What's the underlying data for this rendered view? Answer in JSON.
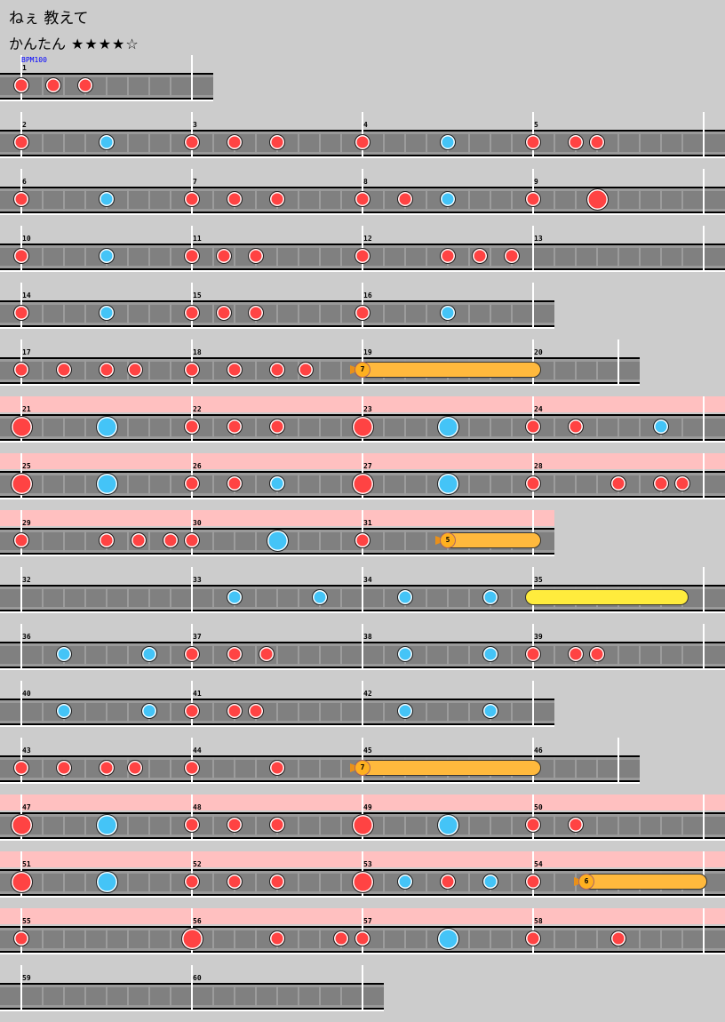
{
  "song_title": "ねぇ 教えて",
  "course": {
    "name": "かんたん",
    "stars": "★★★★☆",
    "level": 4,
    "max_level": 5
  },
  "bpm_label": "BPM100",
  "colors": {
    "background": "#cccccc",
    "gogo": "#ffc0c0",
    "don": "#ff4343",
    "ka": "#44c4f7",
    "balloon": "#ffb93d",
    "drumroll": "#ffec3d",
    "lane": "#808080"
  },
  "chart_data": {
    "type": "table",
    "note_types": {
      "don": "small red",
      "ka": "small blue",
      "DON": "big red",
      "KA": "big blue"
    },
    "rows": [
      {
        "measures": [
          "1"
        ],
        "beats": 4,
        "gogo": false,
        "notes": [
          [
            "don",
            0
          ],
          [
            "don",
            0.75
          ],
          [
            "don",
            1.5
          ]
        ],
        "rolls": []
      },
      {
        "measures": [
          "2",
          "3",
          "4",
          "5"
        ],
        "beats": 16,
        "gogo": false,
        "notes": [
          [
            "don",
            0
          ],
          [
            "ka",
            2
          ],
          [
            "don",
            4
          ],
          [
            "don",
            5
          ],
          [
            "don",
            6
          ],
          [
            "don",
            8
          ],
          [
            "ka",
            10
          ],
          [
            "don",
            12
          ],
          [
            "don",
            13
          ],
          [
            "don",
            13.5
          ]
        ],
        "rolls": []
      },
      {
        "measures": [
          "6",
          "7",
          "8",
          "9"
        ],
        "beats": 16,
        "gogo": false,
        "notes": [
          [
            "don",
            0
          ],
          [
            "ka",
            2
          ],
          [
            "don",
            4
          ],
          [
            "don",
            5
          ],
          [
            "don",
            6
          ],
          [
            "don",
            8
          ],
          [
            "don",
            9
          ],
          [
            "ka",
            10
          ],
          [
            "don",
            12
          ],
          [
            "DON",
            13.5
          ]
        ],
        "rolls": []
      },
      {
        "measures": [
          "10",
          "11",
          "12",
          "13"
        ],
        "beats": 16,
        "gogo": false,
        "notes": [
          [
            "don",
            0
          ],
          [
            "ka",
            2
          ],
          [
            "don",
            4
          ],
          [
            "don",
            4.75
          ],
          [
            "don",
            5.5
          ],
          [
            "don",
            8
          ],
          [
            "don",
            10
          ],
          [
            "don",
            10.75
          ],
          [
            "don",
            11.5
          ]
        ],
        "rolls": []
      },
      {
        "measures": [
          "14",
          "15",
          "16"
        ],
        "beats": 12,
        "gogo": false,
        "notes": [
          [
            "don",
            0
          ],
          [
            "ka",
            2
          ],
          [
            "don",
            4
          ],
          [
            "don",
            4.75
          ],
          [
            "don",
            5.5
          ],
          [
            "don",
            8
          ],
          [
            "ka",
            10
          ]
        ],
        "rolls": []
      },
      {
        "measures": [
          "17",
          "18",
          "19",
          "20"
        ],
        "beats": 14,
        "gogo": false,
        "notes": [
          [
            "don",
            0
          ],
          [
            "don",
            1
          ],
          [
            "don",
            2
          ],
          [
            "don",
            2.667
          ],
          [
            "don",
            4
          ],
          [
            "don",
            5
          ],
          [
            "don",
            6
          ],
          [
            "don",
            6.667
          ]
        ],
        "rolls": [
          {
            "type": "balloon",
            "start": 8,
            "end": 12,
            "count": "7"
          }
        ]
      },
      {
        "measures": [
          "21",
          "22",
          "23",
          "24"
        ],
        "beats": 16,
        "gogo": true,
        "notes": [
          [
            "DON",
            0
          ],
          [
            "KA",
            2
          ],
          [
            "don",
            4
          ],
          [
            "don",
            5
          ],
          [
            "don",
            6
          ],
          [
            "DON",
            8
          ],
          [
            "KA",
            10
          ],
          [
            "don",
            12
          ],
          [
            "don",
            13
          ],
          [
            "ka",
            15
          ]
        ],
        "rolls": []
      },
      {
        "measures": [
          "25",
          "26",
          "27",
          "28"
        ],
        "beats": 16,
        "gogo": true,
        "notes": [
          [
            "DON",
            0
          ],
          [
            "KA",
            2
          ],
          [
            "don",
            4
          ],
          [
            "don",
            5
          ],
          [
            "ka",
            6
          ],
          [
            "DON",
            8
          ],
          [
            "KA",
            10
          ],
          [
            "don",
            12
          ],
          [
            "don",
            14
          ],
          [
            "don",
            15
          ],
          [
            "don",
            15.5
          ]
        ],
        "rolls": []
      },
      {
        "measures": [
          "29",
          "30",
          "31"
        ],
        "beats": 12,
        "gogo": true,
        "notes": [
          [
            "don",
            0
          ],
          [
            "don",
            2
          ],
          [
            "don",
            2.75
          ],
          [
            "don",
            3.5
          ],
          [
            "don",
            4
          ],
          [
            "KA",
            6
          ],
          [
            "don",
            8
          ]
        ],
        "rolls": [
          {
            "type": "balloon",
            "start": 10,
            "end": 12,
            "count": "5"
          }
        ]
      },
      {
        "measures": [
          "32",
          "33",
          "34",
          "35"
        ],
        "beats": 16,
        "gogo": false,
        "notes": [
          [
            "ka",
            5
          ],
          [
            "ka",
            7
          ],
          [
            "ka",
            9
          ],
          [
            "ka",
            11
          ]
        ],
        "rolls": [
          {
            "type": "drumroll",
            "start": 12,
            "end": 15.45
          }
        ]
      },
      {
        "measures": [
          "36",
          "37",
          "38",
          "39"
        ],
        "beats": 16,
        "gogo": false,
        "notes": [
          [
            "ka",
            1
          ],
          [
            "ka",
            3
          ],
          [
            "don",
            4
          ],
          [
            "don",
            5
          ],
          [
            "don",
            5.75
          ],
          [
            "ka",
            9
          ],
          [
            "ka",
            11
          ],
          [
            "don",
            12
          ],
          [
            "don",
            13
          ],
          [
            "don",
            13.5
          ]
        ],
        "rolls": []
      },
      {
        "measures": [
          "40",
          "41",
          "42"
        ],
        "beats": 12,
        "gogo": false,
        "notes": [
          [
            "ka",
            1
          ],
          [
            "ka",
            3
          ],
          [
            "don",
            4
          ],
          [
            "don",
            5
          ],
          [
            "don",
            5.5
          ],
          [
            "ka",
            9
          ],
          [
            "ka",
            11
          ]
        ],
        "rolls": []
      },
      {
        "measures": [
          "43",
          "44",
          "45",
          "46"
        ],
        "beats": 14,
        "gogo": false,
        "notes": [
          [
            "don",
            0
          ],
          [
            "don",
            1
          ],
          [
            "don",
            2
          ],
          [
            "don",
            2.667
          ],
          [
            "don",
            4
          ],
          [
            "don",
            6
          ]
        ],
        "rolls": [
          {
            "type": "balloon",
            "start": 8,
            "end": 12,
            "count": "7"
          }
        ]
      },
      {
        "measures": [
          "47",
          "48",
          "49",
          "50"
        ],
        "beats": 16,
        "gogo": true,
        "notes": [
          [
            "DON",
            0
          ],
          [
            "KA",
            2
          ],
          [
            "don",
            4
          ],
          [
            "don",
            5
          ],
          [
            "don",
            6
          ],
          [
            "DON",
            8
          ],
          [
            "KA",
            10
          ],
          [
            "don",
            12
          ],
          [
            "don",
            13
          ]
        ],
        "rolls": []
      },
      {
        "measures": [
          "51",
          "52",
          "53",
          "54"
        ],
        "beats": 16,
        "gogo": true,
        "notes": [
          [
            "DON",
            0
          ],
          [
            "KA",
            2
          ],
          [
            "don",
            4
          ],
          [
            "don",
            5
          ],
          [
            "don",
            6
          ],
          [
            "DON",
            8
          ],
          [
            "ka",
            9
          ],
          [
            "don",
            10
          ],
          [
            "ka",
            11
          ],
          [
            "don",
            12
          ]
        ],
        "rolls": [
          {
            "type": "balloon",
            "start": 13.25,
            "end": 15.9,
            "count": "6"
          }
        ]
      },
      {
        "measures": [
          "55",
          "56",
          "57",
          "58"
        ],
        "beats": 16,
        "gogo": true,
        "notes": [
          [
            "don",
            0
          ],
          [
            "DON",
            4
          ],
          [
            "don",
            6
          ],
          [
            "don",
            7.5
          ],
          [
            "don",
            8
          ],
          [
            "KA",
            10
          ],
          [
            "don",
            12
          ],
          [
            "don",
            14
          ]
        ],
        "rolls": []
      },
      {
        "measures": [
          "59",
          "60"
        ],
        "beats": 8,
        "gogo": false,
        "notes": [],
        "rolls": []
      }
    ]
  }
}
